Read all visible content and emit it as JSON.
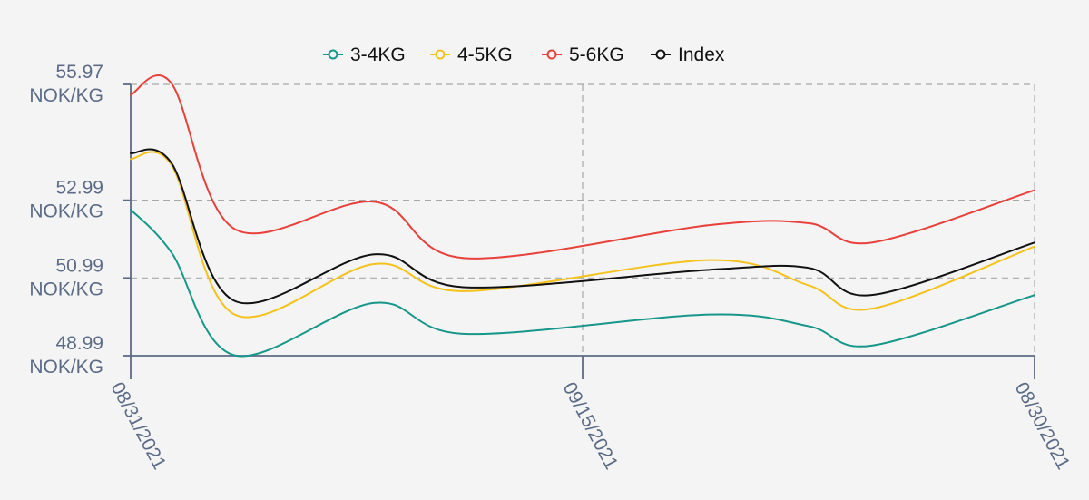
{
  "chart_data": {
    "type": "line",
    "title": "",
    "xlabel": "",
    "ylabel": "",
    "legend_position": "top-center",
    "grid": true,
    "ylim": [
      48.99,
      55.97
    ],
    "x_ticks": [
      "08/31/2021",
      "09/15/2021",
      "08/30/2021"
    ],
    "y_ticks": [
      {
        "value": 48.99,
        "label_line1": "48.99",
        "label_line2": "NOK/KG"
      },
      {
        "value": 50.99,
        "label_line1": "50.99",
        "label_line2": "NOK/KG"
      },
      {
        "value": 52.99,
        "label_line1": "52.99",
        "label_line2": "NOK/KG"
      },
      {
        "value": 55.97,
        "label_line1": "55.97",
        "label_line2": "NOK/KG"
      }
    ],
    "x": [
      0,
      0.045,
      0.115,
      0.27,
      0.37,
      0.64,
      0.75,
      0.82,
      1.0
    ],
    "series": [
      {
        "name": "3-4KG",
        "color": "#16978a",
        "values": [
          52.75,
          51.65,
          49.0,
          50.35,
          49.55,
          50.05,
          49.75,
          49.25,
          50.55
        ]
      },
      {
        "name": "4-5KG",
        "color": "#f4c21b",
        "values": [
          54.05,
          53.9,
          50.05,
          51.35,
          50.65,
          51.45,
          50.8,
          50.2,
          51.8
        ]
      },
      {
        "name": "5-6KG",
        "color": "#e8403a",
        "values": [
          55.7,
          56.0,
          52.25,
          52.95,
          51.5,
          52.35,
          52.4,
          51.9,
          53.25
        ]
      },
      {
        "name": "Index",
        "color": "#111111",
        "values": [
          54.2,
          53.95,
          50.4,
          51.6,
          50.75,
          51.2,
          51.25,
          50.55,
          51.9
        ]
      }
    ]
  }
}
